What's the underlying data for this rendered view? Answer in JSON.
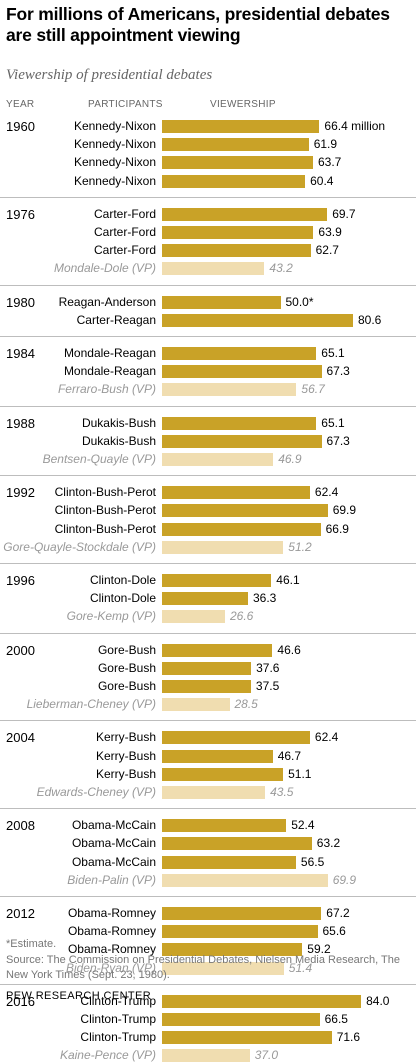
{
  "header": {
    "title": "For millions of Americans, presidential debates are still appointment viewing",
    "subtitle": "Viewership of presidential debates",
    "col_year": "YEAR",
    "col_participants": "PARTICIPANTS",
    "col_viewership": "VIEWERSHIP"
  },
  "chart_data": {
    "type": "bar",
    "orientation": "horizontal",
    "title": "For millions of Americans, presidential debates are still appointment viewing",
    "subtitle": "Viewership of presidential debates",
    "unit": "million",
    "xlim": [
      0,
      90
    ],
    "colors": {
      "presidential": "#c9a227",
      "vice_presidential": "#f0ddb0"
    },
    "groups": [
      {
        "year": "1960",
        "debates": [
          {
            "participants": "Kennedy-Nixon",
            "value": 66.4,
            "label": "66.4 million",
            "vp": false
          },
          {
            "participants": "Kennedy-Nixon",
            "value": 61.9,
            "label": "61.9",
            "vp": false
          },
          {
            "participants": "Kennedy-Nixon",
            "value": 63.7,
            "label": "63.7",
            "vp": false
          },
          {
            "participants": "Kennedy-Nixon",
            "value": 60.4,
            "label": "60.4",
            "vp": false
          }
        ]
      },
      {
        "year": "1976",
        "debates": [
          {
            "participants": "Carter-Ford",
            "value": 69.7,
            "label": "69.7",
            "vp": false
          },
          {
            "participants": "Carter-Ford",
            "value": 63.9,
            "label": "63.9",
            "vp": false
          },
          {
            "participants": "Carter-Ford",
            "value": 62.7,
            "label": "62.7",
            "vp": false
          },
          {
            "participants": "Mondale-Dole (VP)",
            "value": 43.2,
            "label": "43.2",
            "vp": true
          }
        ]
      },
      {
        "year": "1980",
        "debates": [
          {
            "participants": "Reagan-Anderson",
            "value": 50.0,
            "label": "50.0*",
            "vp": false
          },
          {
            "participants": "Carter-Reagan",
            "value": 80.6,
            "label": "80.6",
            "vp": false
          }
        ]
      },
      {
        "year": "1984",
        "debates": [
          {
            "participants": "Mondale-Reagan",
            "value": 65.1,
            "label": "65.1",
            "vp": false
          },
          {
            "participants": "Mondale-Reagan",
            "value": 67.3,
            "label": "67.3",
            "vp": false
          },
          {
            "participants": "Ferraro-Bush (VP)",
            "value": 56.7,
            "label": "56.7",
            "vp": true
          }
        ]
      },
      {
        "year": "1988",
        "debates": [
          {
            "participants": "Dukakis-Bush",
            "value": 65.1,
            "label": "65.1",
            "vp": false
          },
          {
            "participants": "Dukakis-Bush",
            "value": 67.3,
            "label": "67.3",
            "vp": false
          },
          {
            "participants": "Bentsen-Quayle (VP)",
            "value": 46.9,
            "label": "46.9",
            "vp": true
          }
        ]
      },
      {
        "year": "1992",
        "debates": [
          {
            "participants": "Clinton-Bush-Perot",
            "value": 62.4,
            "label": "62.4",
            "vp": false
          },
          {
            "participants": "Clinton-Bush-Perot",
            "value": 69.9,
            "label": "69.9",
            "vp": false
          },
          {
            "participants": "Clinton-Bush-Perot",
            "value": 66.9,
            "label": "66.9",
            "vp": false
          },
          {
            "participants": "Gore-Quayle-Stockdale (VP)",
            "value": 51.2,
            "label": "51.2",
            "vp": true
          }
        ]
      },
      {
        "year": "1996",
        "debates": [
          {
            "participants": "Clinton-Dole",
            "value": 46.1,
            "label": "46.1",
            "vp": false
          },
          {
            "participants": "Clinton-Dole",
            "value": 36.3,
            "label": "36.3",
            "vp": false
          },
          {
            "participants": "Gore-Kemp (VP)",
            "value": 26.6,
            "label": "26.6",
            "vp": true
          }
        ]
      },
      {
        "year": "2000",
        "debates": [
          {
            "participants": "Gore-Bush",
            "value": 46.6,
            "label": "46.6",
            "vp": false
          },
          {
            "participants": "Gore-Bush",
            "value": 37.6,
            "label": "37.6",
            "vp": false
          },
          {
            "participants": "Gore-Bush",
            "value": 37.5,
            "label": "37.5",
            "vp": false
          },
          {
            "participants": "Lieberman-Cheney (VP)",
            "value": 28.5,
            "label": "28.5",
            "vp": true
          }
        ]
      },
      {
        "year": "2004",
        "debates": [
          {
            "participants": "Kerry-Bush",
            "value": 62.4,
            "label": "62.4",
            "vp": false
          },
          {
            "participants": "Kerry-Bush",
            "value": 46.7,
            "label": "46.7",
            "vp": false
          },
          {
            "participants": "Kerry-Bush",
            "value": 51.1,
            "label": "51.1",
            "vp": false
          },
          {
            "participants": "Edwards-Cheney (VP)",
            "value": 43.5,
            "label": "43.5",
            "vp": true
          }
        ]
      },
      {
        "year": "2008",
        "debates": [
          {
            "participants": "Obama-McCain",
            "value": 52.4,
            "label": "52.4",
            "vp": false
          },
          {
            "participants": "Obama-McCain",
            "value": 63.2,
            "label": "63.2",
            "vp": false
          },
          {
            "participants": "Obama-McCain",
            "value": 56.5,
            "label": "56.5",
            "vp": false
          },
          {
            "participants": "Biden-Palin (VP)",
            "value": 69.9,
            "label": "69.9",
            "vp": true
          }
        ]
      },
      {
        "year": "2012",
        "debates": [
          {
            "participants": "Obama-Romney",
            "value": 67.2,
            "label": "67.2",
            "vp": false
          },
          {
            "participants": "Obama-Romney",
            "value": 65.6,
            "label": "65.6",
            "vp": false
          },
          {
            "participants": "Obama-Romney",
            "value": 59.2,
            "label": "59.2",
            "vp": false
          },
          {
            "participants": "Biden-Ryan (VP)",
            "value": 51.4,
            "label": "51.4",
            "vp": true
          }
        ]
      },
      {
        "year": "2016",
        "debates": [
          {
            "participants": "Clinton-Trump",
            "value": 84.0,
            "label": "84.0",
            "vp": false
          },
          {
            "participants": "Clinton-Trump",
            "value": 66.5,
            "label": "66.5",
            "vp": false
          },
          {
            "participants": "Clinton-Trump",
            "value": 71.6,
            "label": "71.6",
            "vp": false
          },
          {
            "participants": "Kaine-Pence (VP)",
            "value": 37.0,
            "label": "37.0",
            "vp": true
          }
        ]
      }
    ]
  },
  "notes": {
    "estimate": "*Estimate.",
    "source": "Source: The Commission on Presidential Debates, Nielsen Media Research, The New York Times (Sept. 23, 1980).",
    "footer": "PEW RESEARCH CENTER"
  }
}
